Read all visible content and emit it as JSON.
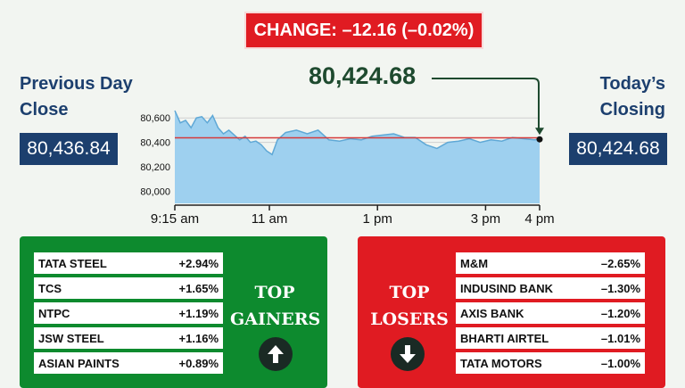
{
  "change_label": "CHANGE: –12.16 (–0.02%)",
  "previous_close": {
    "label_line1": "Previous Day",
    "label_line2": "Close",
    "value": "80,436.84"
  },
  "today_close": {
    "label_line1": "Today’s",
    "label_line2": "Closing",
    "value": "80,424.68"
  },
  "current_value": "80,424.68",
  "chart_data": {
    "type": "area",
    "y_ticks": [
      "80,600",
      "80,400",
      "80,200",
      "80,000"
    ],
    "y_tick_values": [
      80600,
      80400,
      80200,
      80000
    ],
    "x_ticks": [
      "9:15 am",
      "11 am",
      "1 pm",
      "3 pm",
      "4 pm"
    ],
    "x_tick_values": [
      9.25,
      11,
      13,
      15,
      16
    ],
    "ylim": [
      79900,
      80660
    ],
    "xlim": [
      9.25,
      16
    ],
    "reference_line": 80436.84,
    "x": [
      9.25,
      9.35,
      9.45,
      9.55,
      9.65,
      9.75,
      9.85,
      9.95,
      10.05,
      10.15,
      10.25,
      10.35,
      10.45,
      10.55,
      10.65,
      10.75,
      10.85,
      10.95,
      11.05,
      11.15,
      11.3,
      11.5,
      11.7,
      11.9,
      12.1,
      12.3,
      12.5,
      12.7,
      12.9,
      13.1,
      13.3,
      13.5,
      13.7,
      13.9,
      14.1,
      14.3,
      14.5,
      14.7,
      14.9,
      15.1,
      15.3,
      15.5,
      15.7,
      15.9,
      16
    ],
    "values": [
      80660,
      80560,
      80580,
      80520,
      80600,
      80610,
      80560,
      80620,
      80520,
      80470,
      80500,
      80460,
      80420,
      80450,
      80400,
      80410,
      80380,
      80330,
      80300,
      80420,
      80480,
      80500,
      80470,
      80500,
      80420,
      80410,
      80430,
      80420,
      80450,
      80460,
      80470,
      80440,
      80440,
      80380,
      80350,
      80400,
      80410,
      80430,
      80400,
      80420,
      80410,
      80440,
      80430,
      80420,
      80424.68
    ]
  },
  "colors": {
    "area_fill": "#9ed0ef",
    "area_line": "#5fa8d6",
    "ref_line": "#d63a3a",
    "accent_red": "#e01b22",
    "accent_green": "#0d8a2e",
    "navy": "#1c3f6e"
  },
  "top_gainers": {
    "title_line1": "TOP",
    "title_line2": "GAINERS",
    "icon": "arrow-up-icon",
    "items": [
      {
        "name": "TATA STEEL",
        "change": "+2.94%"
      },
      {
        "name": "TCS",
        "change": "+1.65%"
      },
      {
        "name": "NTPC",
        "change": "+1.19%"
      },
      {
        "name": "JSW STEEL",
        "change": "+1.16%"
      },
      {
        "name": "ASIAN PAINTS",
        "change": "+0.89%"
      }
    ]
  },
  "top_losers": {
    "title_line1": "TOP",
    "title_line2": "LOSERS",
    "icon": "arrow-down-icon",
    "items": [
      {
        "name": "M&M",
        "change": "–2.65%"
      },
      {
        "name": "INDUSIND BANK",
        "change": "–1.30%"
      },
      {
        "name": "AXIS BANK",
        "change": "–1.20%"
      },
      {
        "name": "BHARTI AIRTEL",
        "change": "–1.01%"
      },
      {
        "name": "TATA MOTORS",
        "change": "–1.00%"
      }
    ]
  }
}
